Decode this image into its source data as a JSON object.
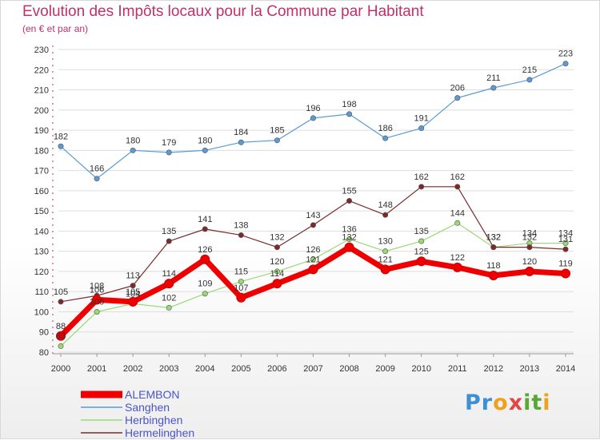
{
  "header": {
    "title": "Evolution des Impôts locaux pour la Commune par Habitant",
    "subtitle": "(en € et par an)"
  },
  "logo": {
    "text": "Proxiti"
  },
  "colors": {
    "title": "#c0306a",
    "ALEMBON": "#ee0000",
    "Sanghen": "#5b9bd5",
    "Herbinghen": "#99d973",
    "Hermelinghen": "#7a2a2a",
    "legend_text": "#4a54c8"
  },
  "chart_data": {
    "type": "line",
    "title": "Evolution des Impôts locaux pour la Commune par Habitant",
    "subtitle": "(en € et par an)",
    "x": [
      "2000",
      "2001",
      "2002",
      "2003",
      "2004",
      "2005",
      "2006",
      "2007",
      "2008",
      "2009",
      "2010",
      "2011",
      "2012",
      "2013",
      "2014"
    ],
    "ylim": [
      80,
      230
    ],
    "yticks": [
      80,
      90,
      100,
      110,
      120,
      130,
      140,
      150,
      160,
      170,
      180,
      190,
      200,
      210,
      220,
      230
    ],
    "grid": "horizontal",
    "legend_position": "bottom-left",
    "series": [
      {
        "name": "ALEMBON",
        "values": [
          88,
          106,
          105,
          114,
          126,
          107,
          114,
          121,
          132,
          121,
          125,
          122,
          118,
          120,
          119
        ],
        "labeled": true
      },
      {
        "name": "Sanghen",
        "values": [
          182,
          166,
          180,
          179,
          180,
          184,
          185,
          196,
          198,
          186,
          191,
          206,
          211,
          215,
          223
        ],
        "labeled": true
      },
      {
        "name": "Herbinghen",
        "values": [
          83,
          100,
          104,
          102,
          109,
          115,
          120,
          126,
          136,
          130,
          135,
          144,
          132,
          134,
          134
        ],
        "labeled": true
      },
      {
        "name": "Hermelinghen",
        "values": [
          105,
          108,
          113,
          135,
          141,
          138,
          132,
          143,
          155,
          148,
          162,
          162,
          132,
          132,
          131
        ],
        "labeled": true
      }
    ]
  }
}
